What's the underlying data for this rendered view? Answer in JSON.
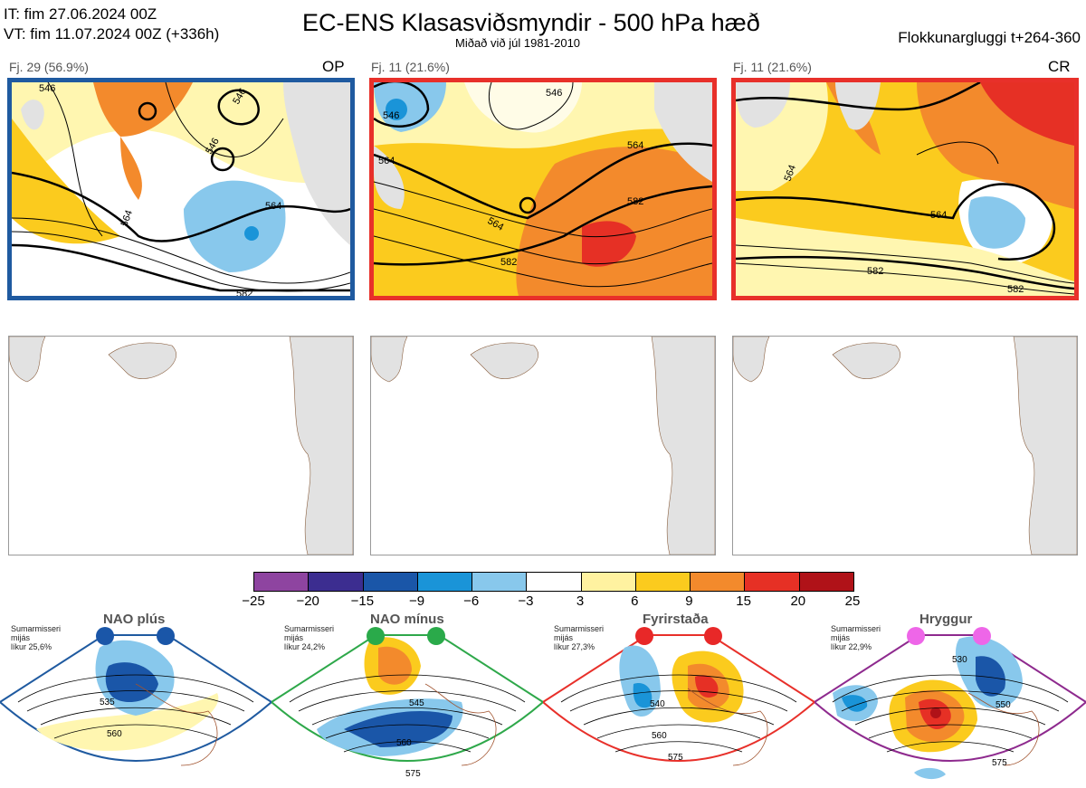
{
  "header": {
    "it_line": "IT: fim 27.06.2024 00Z",
    "vt_line": "VT: fim 11.07.2024 00Z  (+336h)",
    "title": "EC-ENS Klasasviðsmyndir - 500 hPa hæð",
    "subtitle": "Miðað við júl 1981-2010",
    "window": "Flokkunargluggi t+264-360"
  },
  "panels": [
    {
      "label": "Fj. 29 (56.9%)",
      "code": "OP",
      "border": "#1f5aa0",
      "contours": [
        "546",
        "546",
        "546",
        "564",
        "564",
        "582"
      ]
    },
    {
      "label": "Fj. 11 (21.6%)",
      "code": "",
      "border": "#e8302a",
      "contours": [
        "546",
        "546",
        "564",
        "564",
        "564",
        "582",
        "582"
      ]
    },
    {
      "label": "Fj. 11 (21.6%)",
      "code": "CR",
      "border": "#e8302a",
      "contours": [
        "564",
        "564",
        "582",
        "582"
      ]
    }
  ],
  "colorbar": {
    "ticks": [
      "−25",
      "−20",
      "−15",
      "−9",
      "−6",
      "−3",
      "3",
      "6",
      "9",
      "15",
      "20",
      "25"
    ],
    "colors": [
      "#8e44a0",
      "#3c2d90",
      "#1a56a8",
      "#1a94d8",
      "#88c8ec",
      "#ffffff",
      "#fff2a0",
      "#fbcb1e",
      "#f38a2c",
      "#e63025",
      "#b01218"
    ]
  },
  "regimes": [
    {
      "name": "NAO plús",
      "info": [
        "Sumarmisseri",
        "mijás",
        "líkur 25,6%"
      ],
      "color": "#1f5aa0",
      "dot": "#1a56a8",
      "contours": [
        "535",
        "560"
      ]
    },
    {
      "name": "NAO mínus",
      "info": [
        "Sumarmisseri",
        "mijás",
        "líkur 24,2%"
      ],
      "color": "#2ea84a",
      "dot": "#2aaa4a",
      "contours": [
        "545",
        "560",
        "575"
      ]
    },
    {
      "name": "Fyrirstaða",
      "info": [
        "Sumarmisseri",
        "mijás",
        "líkur 27,3%"
      ],
      "color": "#e8302a",
      "dot": "#e82828",
      "contours": [
        "540",
        "560",
        "575"
      ]
    },
    {
      "name": "Hryggur",
      "info": [
        "Sumarmisseri",
        "mijás",
        "líkur 22,9%"
      ],
      "color": "#8e2a8e",
      "dot": "#ee66e8",
      "contours": [
        "530",
        "550",
        "575"
      ]
    }
  ]
}
